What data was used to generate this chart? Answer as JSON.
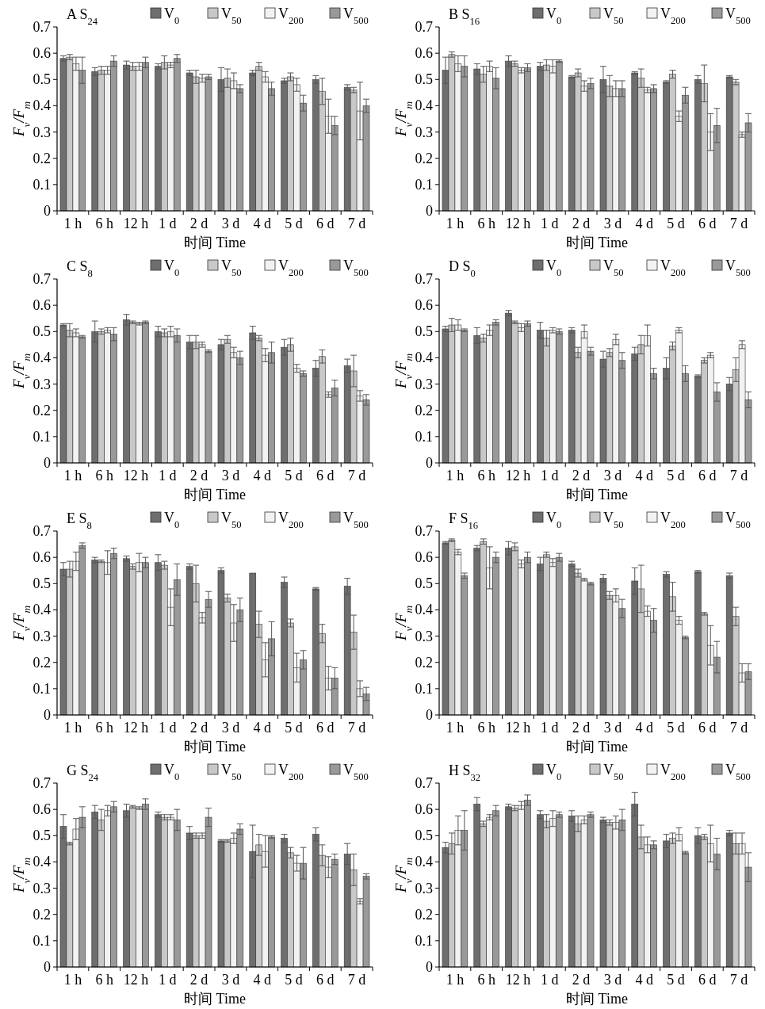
{
  "chart_data": [
    {
      "type": "bar",
      "title": "A S$_{24}$",
      "xlabel": "时间 Time",
      "ylabel": "F$_{v}$/F$_{m}$",
      "categories": [
        "1 h",
        "6 h",
        "12 h",
        "1 d",
        "2 d",
        "3 d",
        "4 d",
        "5 d",
        "6 d",
        "7 d"
      ],
      "ylim": [
        0,
        0.7
      ],
      "yticks": [
        0,
        0.1,
        0.2,
        0.3,
        0.4,
        0.5,
        0.6,
        0.7
      ],
      "legend": "top",
      "series": [
        {
          "name": "V$_{0}$",
          "color": "#6e6e6e",
          "values": [
            0.58,
            0.53,
            0.555,
            0.55,
            0.525,
            0.5,
            0.525,
            0.495,
            0.5,
            0.47
          ],
          "errors": [
            0.01,
            0.015,
            0.015,
            0.01,
            0.01,
            0.045,
            0.01,
            0.01,
            0.015,
            0.01
          ]
        },
        {
          "name": "V$_{50}$",
          "color": "#c8c8c8",
          "values": [
            0.585,
            0.535,
            0.55,
            0.565,
            0.51,
            0.505,
            0.55,
            0.51,
            0.455,
            0.46
          ],
          "errors": [
            0.01,
            0.015,
            0.015,
            0.025,
            0.025,
            0.035,
            0.015,
            0.015,
            0.05,
            0.01
          ]
        },
        {
          "name": "V$_{200}$",
          "color": "#f2f2f2",
          "values": [
            0.56,
            0.535,
            0.55,
            0.555,
            0.505,
            0.495,
            0.51,
            0.48,
            0.36,
            0.38
          ],
          "errors": [
            0.025,
            0.015,
            0.015,
            0.01,
            0.015,
            0.03,
            0.02,
            0.025,
            0.065,
            0.11
          ]
        },
        {
          "name": "V$_{500}$",
          "color": "#999999",
          "values": [
            0.535,
            0.57,
            0.565,
            0.58,
            0.51,
            0.465,
            0.465,
            0.41,
            0.325,
            0.4
          ],
          "errors": [
            0.05,
            0.02,
            0.02,
            0.015,
            0.01,
            0.015,
            0.025,
            0.03,
            0.035,
            0.025
          ]
        }
      ]
    },
    {
      "type": "bar",
      "title": "B S$_{16}$",
      "xlabel": "时间 Time",
      "ylabel": "F$_{v}$/F$_{m}$",
      "categories": [
        "1 h",
        "6 h",
        "12 h",
        "1 d",
        "2 d",
        "3 d",
        "4 d",
        "5 d",
        "6 d",
        "7 d"
      ],
      "ylim": [
        0,
        0.7
      ],
      "yticks": [
        0,
        0.1,
        0.2,
        0.3,
        0.4,
        0.5,
        0.6,
        0.7
      ],
      "legend": "top",
      "series": [
        {
          "name": "V$_{0}$",
          "color": "#6e6e6e",
          "values": [
            0.535,
            0.54,
            0.57,
            0.55,
            0.51,
            0.5,
            0.525,
            0.49,
            0.5,
            0.51
          ],
          "errors": [
            0.05,
            0.02,
            0.02,
            0.015,
            0.005,
            0.05,
            0.005,
            0.005,
            0.015,
            0.005
          ]
        },
        {
          "name": "V$_{50}$",
          "color": "#c8c8c8",
          "values": [
            0.595,
            0.52,
            0.56,
            0.555,
            0.525,
            0.475,
            0.505,
            0.52,
            0.485,
            0.49
          ],
          "errors": [
            0.01,
            0.03,
            0.01,
            0.02,
            0.015,
            0.04,
            0.035,
            0.015,
            0.07,
            0.01
          ]
        },
        {
          "name": "V$_{200}$",
          "color": "#f2f2f2",
          "values": [
            0.56,
            0.55,
            0.535,
            0.55,
            0.475,
            0.465,
            0.46,
            0.36,
            0.3,
            0.29
          ],
          "errors": [
            0.03,
            0.02,
            0.01,
            0.025,
            0.02,
            0.03,
            0.01,
            0.02,
            0.07,
            0.01
          ]
        },
        {
          "name": "V$_{500}$",
          "color": "#999999",
          "values": [
            0.55,
            0.505,
            0.545,
            0.57,
            0.485,
            0.465,
            0.465,
            0.44,
            0.325,
            0.335
          ],
          "errors": [
            0.04,
            0.04,
            0.015,
            0.005,
            0.02,
            0.03,
            0.015,
            0.03,
            0.065,
            0.035
          ]
        }
      ]
    },
    {
      "type": "bar",
      "title": "C S$_{8}$",
      "xlabel": "时间 Time",
      "ylabel": "F$_{v}$/F$_{m}$",
      "categories": [
        "1 h",
        "6 h",
        "12 h",
        "1 d",
        "2 d",
        "3 d",
        "4 d",
        "5 d",
        "6 d",
        "7 d"
      ],
      "ylim": [
        0,
        0.7
      ],
      "yticks": [
        0,
        0.1,
        0.2,
        0.3,
        0.4,
        0.5,
        0.6,
        0.7
      ],
      "legend": "top",
      "series": [
        {
          "name": "V$_{0}$",
          "color": "#6e6e6e",
          "values": [
            0.525,
            0.5,
            0.545,
            0.5,
            0.46,
            0.45,
            0.495,
            0.44,
            0.36,
            0.37
          ],
          "errors": [
            0.005,
            0.04,
            0.02,
            0.02,
            0.025,
            0.02,
            0.025,
            0.03,
            0.03,
            0.025
          ]
        },
        {
          "name": "V$_{50}$",
          "color": "#c8c8c8",
          "values": [
            0.505,
            0.5,
            0.535,
            0.495,
            0.46,
            0.47,
            0.475,
            0.45,
            0.405,
            0.35
          ],
          "errors": [
            0.025,
            0.01,
            0.005,
            0.015,
            0.025,
            0.015,
            0.01,
            0.025,
            0.025,
            0.06
          ]
        },
        {
          "name": "V$_{200}$",
          "color": "#f2f2f2",
          "values": [
            0.495,
            0.505,
            0.53,
            0.5,
            0.45,
            0.42,
            0.41,
            0.36,
            0.26,
            0.255
          ],
          "errors": [
            0.015,
            0.01,
            0.005,
            0.02,
            0.01,
            0.02,
            0.025,
            0.015,
            0.01,
            0.02
          ]
        },
        {
          "name": "V$_{500}$",
          "color": "#999999",
          "values": [
            0.48,
            0.49,
            0.535,
            0.485,
            0.425,
            0.4,
            0.42,
            0.34,
            0.285,
            0.24
          ],
          "errors": [
            0.005,
            0.025,
            0.005,
            0.025,
            0.005,
            0.025,
            0.04,
            0.01,
            0.03,
            0.02
          ]
        }
      ]
    },
    {
      "type": "bar",
      "title": "D S$_{0}$",
      "xlabel": "时间 Time",
      "ylabel": "F$_{v}$/F$_{m}$",
      "categories": [
        "1 h",
        "6 h",
        "12 h",
        "1 d",
        "2 d",
        "3 d",
        "4 d",
        "5 d",
        "6 d",
        "7 d"
      ],
      "ylim": [
        0,
        0.7
      ],
      "yticks": [
        0,
        0.1,
        0.2,
        0.3,
        0.4,
        0.5,
        0.6,
        0.7
      ],
      "legend": "top",
      "series": [
        {
          "name": "V$_{0}$",
          "color": "#6e6e6e",
          "values": [
            0.51,
            0.485,
            0.57,
            0.505,
            0.505,
            0.395,
            0.415,
            0.36,
            0.33,
            0.3
          ],
          "errors": [
            0.01,
            0.03,
            0.01,
            0.03,
            0.01,
            0.03,
            0.025,
            0.04,
            0.005,
            0.025
          ]
        },
        {
          "name": "V$_{50}$",
          "color": "#c8c8c8",
          "values": [
            0.525,
            0.475,
            0.535,
            0.475,
            0.42,
            0.42,
            0.45,
            0.445,
            0.39,
            0.355
          ],
          "errors": [
            0.025,
            0.015,
            0.005,
            0.03,
            0.02,
            0.015,
            0.035,
            0.015,
            0.01,
            0.045
          ]
        },
        {
          "name": "V$_{200}$",
          "color": "#f2f2f2",
          "values": [
            0.525,
            0.505,
            0.515,
            0.505,
            0.5,
            0.47,
            0.485,
            0.505,
            0.41,
            0.45
          ],
          "errors": [
            0.02,
            0.02,
            0.015,
            0.01,
            0.025,
            0.02,
            0.04,
            0.01,
            0.01,
            0.015
          ]
        },
        {
          "name": "V$_{500}$",
          "color": "#999999",
          "values": [
            0.505,
            0.535,
            0.53,
            0.5,
            0.425,
            0.39,
            0.34,
            0.34,
            0.27,
            0.24
          ],
          "errors": [
            0.005,
            0.01,
            0.01,
            0.01,
            0.015,
            0.03,
            0.02,
            0.03,
            0.035,
            0.03
          ]
        }
      ]
    },
    {
      "type": "bar",
      "title": "E S$_{8}$",
      "xlabel": "时间 Time",
      "ylabel": "F$_{v}$/F$_{m}$",
      "categories": [
        "1 h",
        "6 h",
        "12 h",
        "1 d",
        "2 d",
        "3 d",
        "4 d",
        "5 d",
        "6 d",
        "7 d"
      ],
      "ylim": [
        0,
        0.7
      ],
      "yticks": [
        0,
        0.1,
        0.2,
        0.3,
        0.4,
        0.5,
        0.6,
        0.7
      ],
      "legend": "top",
      "series": [
        {
          "name": "V$_{0}$",
          "color": "#6e6e6e",
          "values": [
            0.555,
            0.59,
            0.595,
            0.58,
            0.565,
            0.55,
            0.54,
            0.505,
            0.48,
            0.49
          ],
          "errors": [
            0.025,
            0.01,
            0.01,
            0.03,
            0.01,
            0.01,
            null,
            0.02,
            0.005,
            0.03
          ]
        },
        {
          "name": "V$_{50}$",
          "color": "#c8c8c8",
          "values": [
            0.555,
            0.585,
            0.565,
            0.57,
            0.5,
            0.445,
            0.345,
            0.35,
            0.31,
            0.315
          ],
          "errors": [
            0.03,
            0.005,
            0.01,
            0.015,
            0.07,
            0.015,
            0.05,
            0.015,
            0.035,
            0.065
          ]
        },
        {
          "name": "V$_{200}$",
          "color": "#f2f2f2",
          "values": [
            0.585,
            0.58,
            0.58,
            0.41,
            0.37,
            0.35,
            0.21,
            0.18,
            0.14,
            0.1
          ],
          "errors": [
            0.035,
            0.045,
            0.035,
            0.07,
            0.02,
            0.07,
            0.065,
            0.055,
            0.045,
            0.03
          ]
        },
        {
          "name": "V$_{500}$",
          "color": "#999999",
          "values": [
            0.645,
            0.615,
            0.58,
            0.515,
            0.44,
            0.4,
            0.29,
            0.21,
            0.14,
            0.08
          ],
          "errors": [
            0.01,
            0.02,
            0.02,
            0.06,
            0.03,
            0.045,
            0.065,
            0.035,
            0.04,
            0.025
          ]
        }
      ]
    },
    {
      "type": "bar",
      "title": "F S$_{16}$",
      "xlabel": "时间 Time",
      "ylabel": "F$_{v}$/F$_{m}$",
      "categories": [
        "1 h",
        "6 h",
        "12 h",
        "1 d",
        "2 d",
        "3 d",
        "4 d",
        "5 d",
        "6 d",
        "7 d"
      ],
      "ylim": [
        0,
        0.7
      ],
      "yticks": [
        0,
        0.1,
        0.2,
        0.3,
        0.4,
        0.5,
        0.6,
        0.7
      ],
      "legend": "top",
      "series": [
        {
          "name": "V$_{0}$",
          "color": "#6e6e6e",
          "values": [
            0.655,
            0.635,
            0.635,
            0.575,
            0.575,
            0.52,
            0.51,
            0.535,
            0.545,
            0.53
          ],
          "errors": [
            0.005,
            0.01,
            0.025,
            0.025,
            0.01,
            0.015,
            0.05,
            0.01,
            0.005,
            0.01
          ]
        },
        {
          "name": "V$_{50}$",
          "color": "#c8c8c8",
          "values": [
            0.665,
            0.66,
            0.64,
            0.61,
            0.54,
            0.455,
            0.48,
            0.45,
            0.385,
            0.375
          ],
          "errors": [
            0.005,
            0.01,
            0.015,
            0.01,
            0.015,
            0.015,
            0.09,
            0.055,
            0.005,
            0.035
          ]
        },
        {
          "name": "V$_{200}$",
          "color": "#f2f2f2",
          "values": [
            0.62,
            0.56,
            0.575,
            0.58,
            0.515,
            0.455,
            0.395,
            0.36,
            0.265,
            0.16
          ],
          "errors": [
            0.01,
            0.08,
            0.015,
            0.015,
            0.005,
            0.025,
            0.02,
            0.015,
            0.075,
            0.035
          ]
        },
        {
          "name": "V$_{500}$",
          "color": "#999999",
          "values": [
            0.53,
            0.6,
            0.6,
            0.6,
            0.5,
            0.405,
            0.36,
            0.295,
            0.22,
            0.165
          ],
          "errors": [
            0.01,
            0.02,
            0.02,
            0.015,
            0.005,
            0.035,
            0.045,
            0.005,
            0.06,
            0.03
          ]
        }
      ]
    },
    {
      "type": "bar",
      "title": "G S$_{24}$",
      "xlabel": "时间 Time",
      "ylabel": "F$_{v}$/F$_{m}$",
      "categories": [
        "1 h",
        "6 h",
        "12 h",
        "1 d",
        "2 d",
        "3 d",
        "4 d",
        "5 d",
        "6 d",
        "7 d"
      ],
      "ylim": [
        0,
        0.7
      ],
      "yticks": [
        0,
        0.1,
        0.2,
        0.3,
        0.4,
        0.5,
        0.6,
        0.7
      ],
      "legend": "top",
      "series": [
        {
          "name": "V$_{0}$",
          "color": "#6e6e6e",
          "values": [
            0.535,
            0.59,
            0.595,
            0.58,
            0.51,
            0.48,
            0.44,
            0.49,
            0.505,
            0.43
          ],
          "errors": [
            0.045,
            0.025,
            0.025,
            0.01,
            0.025,
            0.005,
            0.1,
            0.015,
            0.025,
            0.04
          ]
        },
        {
          "name": "V$_{50}$",
          "color": "#c8c8c8",
          "values": [
            0.47,
            0.56,
            0.61,
            0.57,
            0.5,
            0.48,
            0.465,
            0.435,
            0.425,
            0.37
          ],
          "errors": [
            0.005,
            0.04,
            0.005,
            0.01,
            0.01,
            0.005,
            0.04,
            0.02,
            0.04,
            0.06
          ]
        },
        {
          "name": "V$_{200}$",
          "color": "#f2f2f2",
          "values": [
            0.525,
            0.595,
            0.605,
            0.57,
            0.5,
            0.49,
            0.44,
            0.395,
            0.38,
            0.25
          ],
          "errors": [
            0.04,
            0.02,
            0.005,
            0.01,
            0.01,
            0.02,
            0.06,
            0.03,
            0.04,
            0.01
          ]
        },
        {
          "name": "V$_{500}$",
          "color": "#999999",
          "values": [
            0.57,
            0.61,
            0.62,
            0.56,
            0.57,
            0.525,
            0.495,
            0.395,
            0.41,
            0.345
          ],
          "errors": [
            0.04,
            0.02,
            0.02,
            0.04,
            0.035,
            0.02,
            0.005,
            0.06,
            0.02,
            0.01
          ]
        }
      ]
    },
    {
      "type": "bar",
      "title": "H S$_{32}$",
      "xlabel": "时间 Time",
      "ylabel": "F$_{v}$/F$_{m}$",
      "categories": [
        "1 h",
        "6 h",
        "12 h",
        "1 d",
        "2 d",
        "3 d",
        "4 d",
        "5 d",
        "6 d",
        "7 d"
      ],
      "ylim": [
        0,
        0.7
      ],
      "yticks": [
        0,
        0.1,
        0.2,
        0.3,
        0.4,
        0.5,
        0.6,
        0.7
      ],
      "legend": "top",
      "series": [
        {
          "name": "V$_{0}$",
          "color": "#6e6e6e",
          "values": [
            0.455,
            0.62,
            0.61,
            0.58,
            0.575,
            0.56,
            0.62,
            0.48,
            0.5,
            0.51
          ],
          "errors": [
            0.02,
            0.025,
            0.01,
            0.015,
            0.02,
            0.01,
            0.045,
            0.025,
            0.03,
            0.01
          ]
        },
        {
          "name": "V$_{50}$",
          "color": "#c8c8c8",
          "values": [
            0.47,
            0.545,
            0.605,
            0.555,
            0.545,
            0.55,
            0.495,
            0.49,
            0.495,
            0.47
          ],
          "errors": [
            0.04,
            0.01,
            0.01,
            0.025,
            0.03,
            0.01,
            0.045,
            0.02,
            0.01,
            0.04
          ]
        },
        {
          "name": "V$_{200}$",
          "color": "#f2f2f2",
          "values": [
            0.52,
            0.57,
            0.615,
            0.565,
            0.56,
            0.55,
            0.465,
            0.505,
            0.47,
            0.47
          ],
          "errors": [
            0.055,
            0.01,
            0.015,
            0.03,
            0.015,
            0.025,
            0.03,
            0.025,
            0.07,
            0.04
          ]
        },
        {
          "name": "V$_{500}$",
          "color": "#999999",
          "values": [
            0.52,
            0.595,
            0.635,
            0.58,
            0.58,
            0.56,
            0.465,
            0.435,
            0.43,
            0.38
          ],
          "errors": [
            0.075,
            0.02,
            0.02,
            0.01,
            0.01,
            0.04,
            0.015,
            0.005,
            0.06,
            0.055
          ]
        }
      ]
    }
  ]
}
